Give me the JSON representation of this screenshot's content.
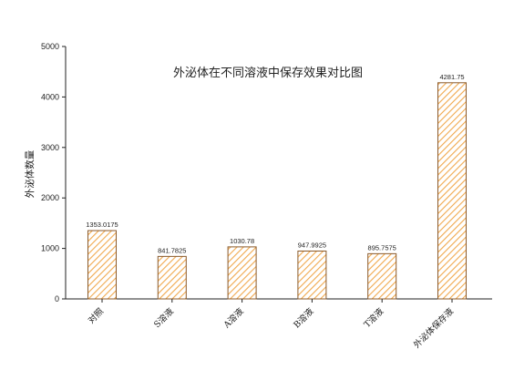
{
  "chart_data": {
    "type": "bar",
    "title": "外泌体在不同溶液中保存效果对比图",
    "xlabel": "",
    "ylabel": "外泌体数量",
    "categories": [
      "对照",
      "S溶液",
      "A溶液",
      "B溶液",
      "T溶液",
      "外泌体保存液"
    ],
    "values": [
      1353.0175,
      841.7825,
      1030.78,
      947.9925,
      895.7575,
      4281.75
    ],
    "value_labels": [
      "1353.0175",
      "841.7825",
      "1030.78",
      "947.9925",
      "895.7575",
      "4281.75"
    ],
    "ylim": [
      0,
      5000
    ],
    "yticks": [
      0,
      1000,
      2000,
      3000,
      4000,
      5000
    ],
    "ytick_labels": [
      "0",
      "1000",
      "2000",
      "3000",
      "4000",
      "5000"
    ],
    "grid": false,
    "legend": "none",
    "bar_fill": "hatched",
    "colors": {
      "hatch": "#f0a94e",
      "bar_border": "#8a5a2b",
      "axis": "#222222"
    }
  }
}
